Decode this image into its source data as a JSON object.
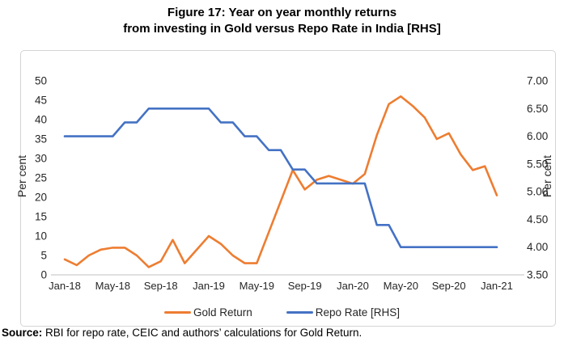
{
  "figure": {
    "title_line1": "Figure 17: Year on year monthly returns",
    "title_line2": "from investing in Gold versus Repo Rate in India [RHS]",
    "source_label": "Source:",
    "source_text": " RBI for repo rate, CEIC and authors’ calculations for Gold Return."
  },
  "chart_data": {
    "type": "line",
    "x": [
      "Jan-18",
      "Feb-18",
      "Mar-18",
      "Apr-18",
      "May-18",
      "Jun-18",
      "Jul-18",
      "Aug-18",
      "Sep-18",
      "Oct-18",
      "Nov-18",
      "Dec-18",
      "Jan-19",
      "Feb-19",
      "Mar-19",
      "Apr-19",
      "May-19",
      "Jun-19",
      "Jul-19",
      "Aug-19",
      "Sep-19",
      "Oct-19",
      "Nov-19",
      "Dec-19",
      "Jan-20",
      "Feb-20",
      "Mar-20",
      "Apr-20",
      "May-20",
      "Jun-20",
      "Jul-20",
      "Aug-20",
      "Sep-20",
      "Oct-20",
      "Nov-20",
      "Dec-20",
      "Jan-21"
    ],
    "x_tick_labels": [
      "Jan-18",
      "May-18",
      "Sep-18",
      "Jan-19",
      "May-19",
      "Sep-19",
      "Jan-20",
      "May-20",
      "Sep-20",
      "Jan-21"
    ],
    "series": [
      {
        "id": "gold-return",
        "name": "Gold Return",
        "axis": "left",
        "color": "#ED7D31",
        "values": [
          4,
          2.5,
          5,
          6.5,
          7,
          7,
          5,
          2,
          3.5,
          9,
          3,
          6.5,
          10,
          8,
          5,
          3,
          3,
          11,
          19,
          27,
          22,
          24.5,
          25.5,
          24.5,
          23.5,
          26,
          36,
          44,
          46,
          43.5,
          40.5,
          35,
          36.5,
          31,
          27,
          28,
          20.5
        ]
      },
      {
        "id": "repo-rate",
        "name": "Repo Rate [RHS]",
        "axis": "right",
        "color": "#4472C4",
        "values": [
          6.0,
          6.0,
          6.0,
          6.0,
          6.0,
          6.25,
          6.25,
          6.5,
          6.5,
          6.5,
          6.5,
          6.5,
          6.5,
          6.25,
          6.25,
          6.0,
          6.0,
          5.75,
          5.75,
          5.4,
          5.4,
          5.15,
          5.15,
          5.15,
          5.15,
          5.15,
          4.4,
          4.4,
          4.0,
          4.0,
          4.0,
          4.0,
          4.0,
          4.0,
          4.0,
          4.0,
          4.0
        ]
      }
    ],
    "left_axis": {
      "label": "Per cent",
      "min": 0,
      "max": 50,
      "ticks": [
        0,
        5,
        10,
        15,
        20,
        25,
        30,
        35,
        40,
        45,
        50
      ]
    },
    "right_axis": {
      "label": "Per cent",
      "min": 3.5,
      "max": 7.0,
      "ticks": [
        "3.50",
        "4.00",
        "4.50",
        "5.00",
        "5.50",
        "6.00",
        "6.50",
        "7.00"
      ]
    },
    "legend_position": "bottom",
    "grid": false
  }
}
